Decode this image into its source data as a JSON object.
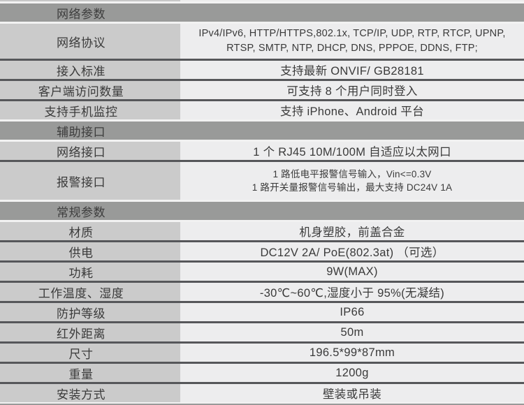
{
  "colors": {
    "section_header_bg": "#999a99",
    "label_column_bg": "#cbcbcb",
    "value_column_bg": "#ededee",
    "divider_dark": "#56575a",
    "divider_light": "#f2f2f2",
    "text": "#3a3a3a"
  },
  "table": {
    "rows": [
      {
        "type": "section",
        "label": "网络参数"
      },
      {
        "type": "item",
        "label": "网络协议",
        "value_lines": [
          "IPv4/IPv6, HTTP/HTTPS,802.1x, TCP/IP, UDP, RTP, RTCP, UPNP,",
          "RTSP, SMTP, NTP, DHCP, DNS, PPPOE, DDNS, FTP;"
        ]
      },
      {
        "type": "item",
        "label": "接入标准",
        "value": "支持最新 ONVIF/ GB28181"
      },
      {
        "type": "item",
        "label": "客户端访问数量",
        "value": "可支持 8 个用户同时登入"
      },
      {
        "type": "item",
        "label": "支持手机监控",
        "value": "支持 iPhone、Android 平台"
      },
      {
        "type": "section",
        "label": "辅助接口"
      },
      {
        "type": "item",
        "label": "网络接口",
        "value": "1 个 RJ45 10M/100M 自适应以太网口"
      },
      {
        "type": "item",
        "label": "报警接口",
        "value_lines": [
          "1 路低电平报警信号输入，Vin<=0.3V",
          "1 路开关量报警信号输出，最大支持 DC24V 1A"
        ]
      },
      {
        "type": "section",
        "label": "常规参数"
      },
      {
        "type": "item",
        "label": "材质",
        "value": "机身塑胶，前盖合金"
      },
      {
        "type": "item",
        "label": "供电",
        "value": "DC12V 2A/ PoE(802.3at) （可选）"
      },
      {
        "type": "item",
        "label": "功耗",
        "value": "9W(MAX)"
      },
      {
        "type": "item",
        "label": "工作温度、湿度",
        "value": "-30℃~60℃,湿度小于 95%(无凝结)"
      },
      {
        "type": "item",
        "label": "防护等级",
        "value": "IP66"
      },
      {
        "type": "item",
        "label": "红外距离",
        "value": "50m"
      },
      {
        "type": "item",
        "label": "尺寸",
        "value": "196.5*99*87mm"
      },
      {
        "type": "item",
        "label": "重量",
        "value": "1200g"
      },
      {
        "type": "item",
        "label": "安装方式",
        "value": "壁装或吊装"
      }
    ]
  }
}
